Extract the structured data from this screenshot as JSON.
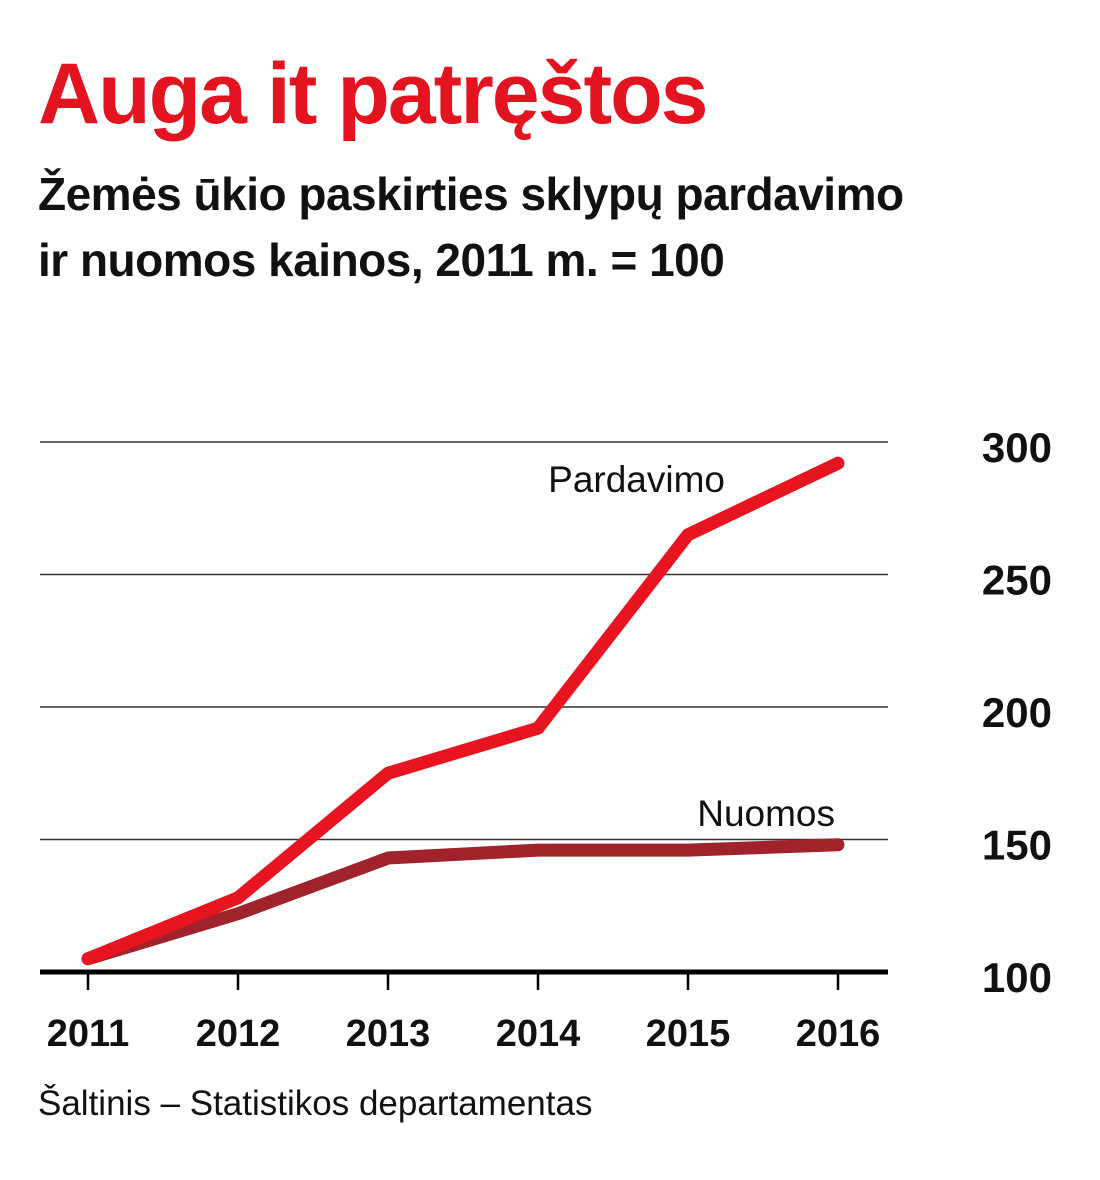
{
  "header": {
    "title": "Auga it patręštos",
    "subtitle_line1": "Žemės ūkio paskirties sklypų pardavimo",
    "subtitle_line2": "ir nuomos kainos, 2011 m. = 100"
  },
  "footer": {
    "source": "Šaltinis – Statistikos departamentas"
  },
  "colors": {
    "title": "#e3141f",
    "pardavimo": "#e8141f",
    "nuomos": "#a0232b",
    "grid": "#333333",
    "text": "#111111"
  },
  "chart_data": {
    "type": "line",
    "x": [
      "2011",
      "2012",
      "2013",
      "2014",
      "2015",
      "2016"
    ],
    "series": [
      {
        "name": "Pardavimo",
        "values": [
          105,
          128,
          175,
          192,
          265,
          292
        ]
      },
      {
        "name": "Nuomos",
        "values": [
          105,
          122,
          143,
          146,
          146,
          148
        ]
      }
    ],
    "yticks": [
      100,
      150,
      200,
      250,
      300
    ],
    "ylim": [
      100,
      300
    ],
    "grid": true,
    "y_axis_position": "right",
    "legend": "inline-labels"
  }
}
